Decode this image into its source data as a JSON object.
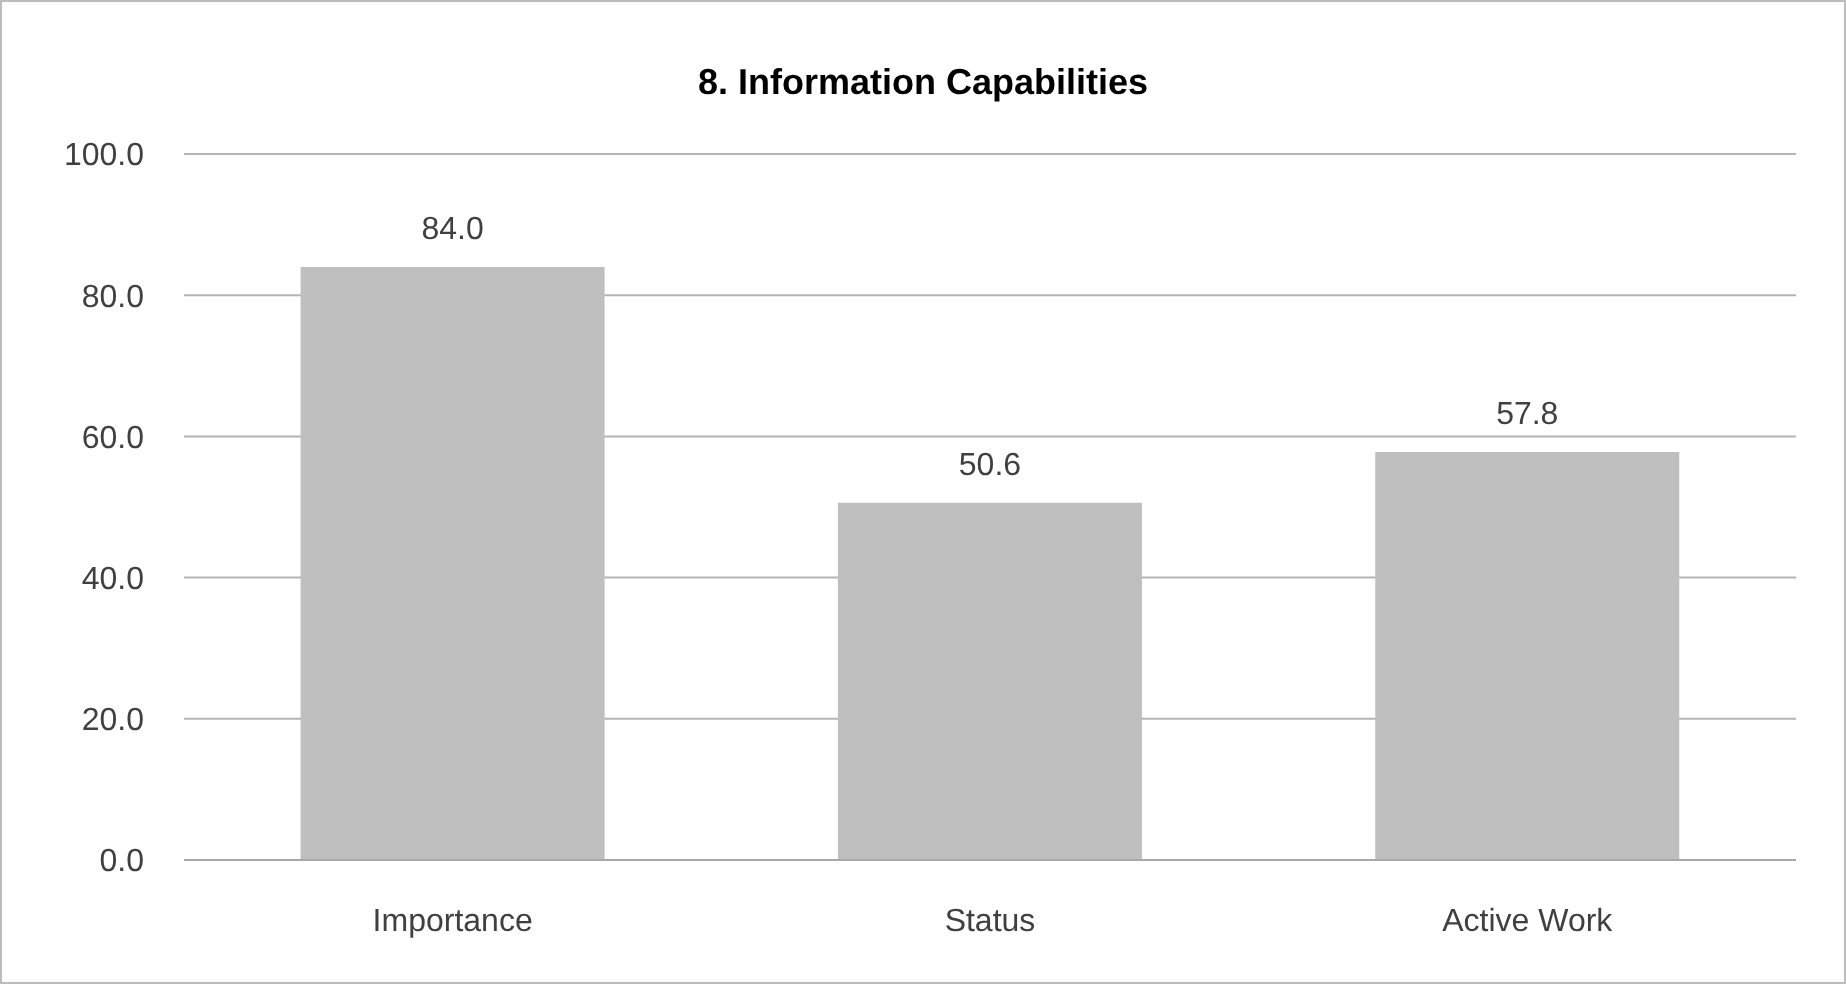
{
  "chart_data": {
    "type": "bar",
    "title": "8. Information Capabilities",
    "categories": [
      "Importance",
      "Status",
      "Active Work"
    ],
    "values": [
      84.0,
      50.6,
      57.8
    ],
    "value_labels": [
      "84.0",
      "50.6",
      "57.8"
    ],
    "color": "#bfbfbf",
    "ylim": [
      0,
      100
    ],
    "yticks": [
      {
        "value": 0,
        "label": "0.0"
      },
      {
        "value": 20,
        "label": "20.0"
      },
      {
        "value": 40,
        "label": "40.0"
      },
      {
        "value": 60,
        "label": "60.0"
      },
      {
        "value": 80,
        "label": "80.0"
      },
      {
        "value": 100,
        "label": "100.0"
      }
    ],
    "grid": "y"
  }
}
